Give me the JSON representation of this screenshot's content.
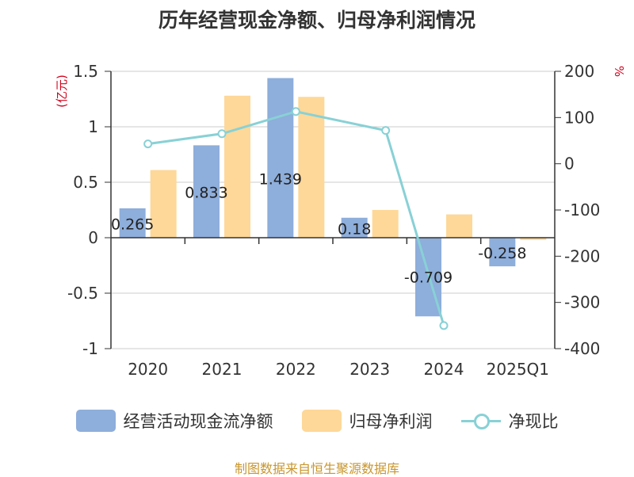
{
  "title": "历年经营现金净额、归母净利润情况",
  "units": {
    "left": "(亿元)",
    "right": "%"
  },
  "source": "制图数据来自恒生聚源数据库",
  "colors": {
    "series0": "#8eaedb",
    "series1": "#fed898",
    "series2": "#88d1d6"
  },
  "chart_data": {
    "type": "bar",
    "categories": [
      "2020",
      "2021",
      "2022",
      "2023",
      "2024",
      "2025Q1"
    ],
    "series": [
      {
        "name": "经营活动现金流净额",
        "type": "bar",
        "axis": "left",
        "values": [
          0.265,
          0.833,
          1.439,
          0.18,
          -0.709,
          -0.258
        ],
        "labels": [
          "0.265",
          "0.833",
          "1.439",
          "0.18",
          "-0.709",
          "-0.258"
        ]
      },
      {
        "name": "归母净利润",
        "type": "bar",
        "axis": "left",
        "values": [
          0.61,
          1.28,
          1.27,
          0.25,
          0.21,
          -0.02
        ]
      },
      {
        "name": "净现比",
        "type": "line",
        "axis": "right",
        "values": [
          43,
          65,
          113,
          72,
          -350,
          null
        ]
      }
    ],
    "y_left": {
      "range": [
        -1,
        1.5
      ],
      "ticks": [
        "1.5",
        "1",
        "0.5",
        "0",
        "-0.5",
        "-1"
      ]
    },
    "y_right": {
      "range": [
        -400,
        200
      ],
      "ticks": [
        "200",
        "100",
        "0",
        "-100",
        "-200",
        "-300",
        "-400"
      ]
    },
    "grid": true,
    "legend_position": "bottom"
  }
}
